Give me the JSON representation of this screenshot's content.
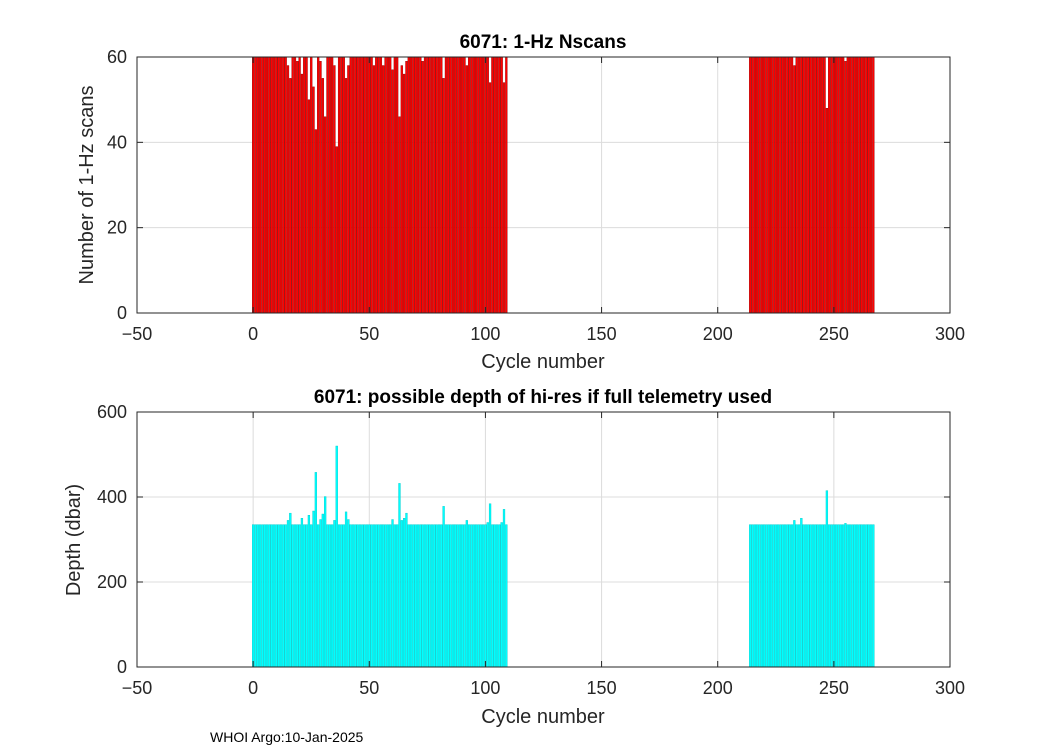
{
  "footer": "WHOI Argo:10-Jan-2025",
  "chart_data": [
    {
      "type": "bar",
      "title": "6071: 1-Hz Nscans",
      "xlabel": "Cycle number",
      "ylabel": "Number of 1-Hz scans",
      "xlim": [
        -50,
        300
      ],
      "ylim": [
        0,
        60
      ],
      "xticks": [
        -50,
        0,
        50,
        100,
        150,
        200,
        250,
        300
      ],
      "yticks": [
        0,
        20,
        40,
        60
      ],
      "grid": true,
      "bar_color": "#ff0000",
      "bar_edge": "#8a0000",
      "default_value": 60,
      "ranges": [
        [
          0,
          109
        ],
        [
          214,
          267
        ]
      ],
      "exceptions": {
        "15": 58,
        "16": 55,
        "19": 59,
        "21": 56,
        "24": 50,
        "26": 53,
        "27": 43,
        "29": 59,
        "30": 55,
        "31": 46,
        "35": 58,
        "36": 39,
        "40": 55,
        "41": 58,
        "52": 58,
        "56": 58,
        "60": 57,
        "63": 46,
        "64": 58,
        "65": 56,
        "66": 59,
        "73": 59,
        "82": 55,
        "92": 58,
        "102": 54,
        "108": 54,
        "233": 58,
        "247": 48,
        "255": 59
      }
    },
    {
      "type": "bar",
      "title": "6071: possible depth of hi-res if full telemetry used",
      "xlabel": "Cycle number",
      "ylabel": "Depth (dbar)",
      "xlim": [
        -50,
        300
      ],
      "ylim": [
        0,
        600
      ],
      "xticks": [
        -50,
        0,
        50,
        100,
        150,
        200,
        250,
        300
      ],
      "yticks": [
        0,
        200,
        400,
        600
      ],
      "grid": true,
      "bar_color": "#00ffff",
      "bar_edge": "#00c8c8",
      "default_value": 335,
      "ranges": [
        [
          0,
          109
        ],
        [
          214,
          267
        ]
      ],
      "exceptions": {
        "15": 345,
        "16": 362,
        "21": 350,
        "24": 357,
        "26": 367,
        "27": 458,
        "29": 347,
        "30": 360,
        "31": 401,
        "35": 345,
        "36": 520,
        "40": 365,
        "41": 347,
        "60": 347,
        "63": 432,
        "64": 345,
        "65": 350,
        "66": 362,
        "82": 378,
        "92": 345,
        "101": 340,
        "102": 384,
        "107": 340,
        "108": 371,
        "233": 345,
        "236": 350,
        "247": 415,
        "255": 338
      }
    }
  ]
}
